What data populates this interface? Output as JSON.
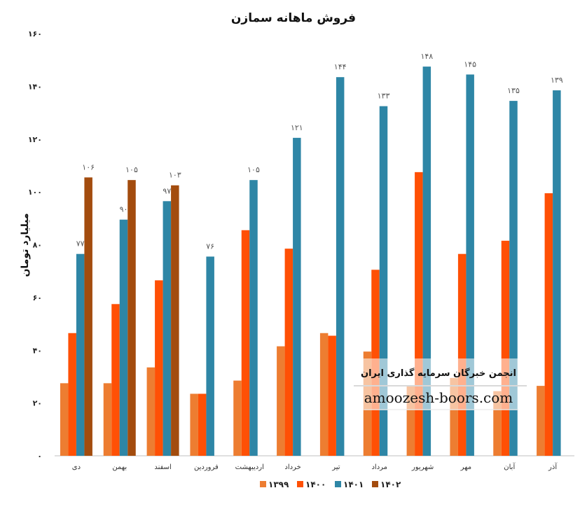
{
  "chart_data": {
    "type": "bar",
    "title": "فروش ماهانه سمازن",
    "ylabel": "میلیارد تومان",
    "xlabel": "",
    "ylim": [
      0,
      160
    ],
    "yticks": [
      0,
      20,
      40,
      60,
      80,
      100,
      120,
      140,
      160
    ],
    "ytick_labels": [
      "۰",
      "۲۰",
      "۴۰",
      "۶۰",
      "۸۰",
      "۱۰۰",
      "۱۲۰",
      "۱۴۰",
      "۱۶۰"
    ],
    "grid": false,
    "legend_position": "bottom",
    "categories": [
      "دی",
      "بهمن",
      "اسفند",
      "فروردین",
      "اردیبهشت",
      "خرداد",
      "تیر",
      "مرداد",
      "شهریور",
      "مهر",
      "آبان",
      "آذر"
    ],
    "series": [
      {
        "name": "۱۳۹۹",
        "color": "#ed7d31",
        "values": [
          27.5,
          27.5,
          33.5,
          23.5,
          28.5,
          41.5,
          46.5,
          39.5,
          26.5,
          29.5,
          24.5,
          26.5
        ],
        "labels": [
          null,
          null,
          null,
          null,
          null,
          null,
          null,
          null,
          null,
          null,
          null,
          null
        ]
      },
      {
        "name": "۱۴۰۰",
        "color": "#ff5005",
        "values": [
          46.5,
          57.5,
          66.5,
          23.5,
          85.5,
          78.5,
          45.5,
          70.5,
          107.5,
          76.5,
          81.5,
          99.5
        ],
        "labels": [
          null,
          null,
          null,
          null,
          null,
          null,
          null,
          null,
          null,
          null,
          null,
          null
        ]
      },
      {
        "name": "۱۴۰۱",
        "color": "#2e86a6",
        "values": [
          76.5,
          89.5,
          96.5,
          75.5,
          104.5,
          120.5,
          143.5,
          132.5,
          147.5,
          144.5,
          134.5,
          138.5
        ],
        "labels": [
          "۷۷",
          "۹۰",
          "۹۷",
          "۷۶",
          "۱۰۵",
          "۱۲۱",
          "۱۴۴",
          "۱۳۳",
          "۱۴۸",
          "۱۴۵",
          "۱۳۵",
          "۱۳۹"
        ]
      },
      {
        "name": "۱۴۰۲",
        "color": "#a34c0e",
        "values": [
          105.5,
          104.5,
          102.5,
          null,
          null,
          null,
          null,
          null,
          null,
          null,
          null,
          null
        ],
        "labels": [
          "۱۰۶",
          "۱۰۵",
          "۱۰۳",
          null,
          null,
          null,
          null,
          null,
          null,
          null,
          null,
          null
        ]
      }
    ]
  },
  "watermark": {
    "title": "انجمن خبرگان سرمایه گذاری ایران",
    "url": "amoozesh-boors.com"
  }
}
